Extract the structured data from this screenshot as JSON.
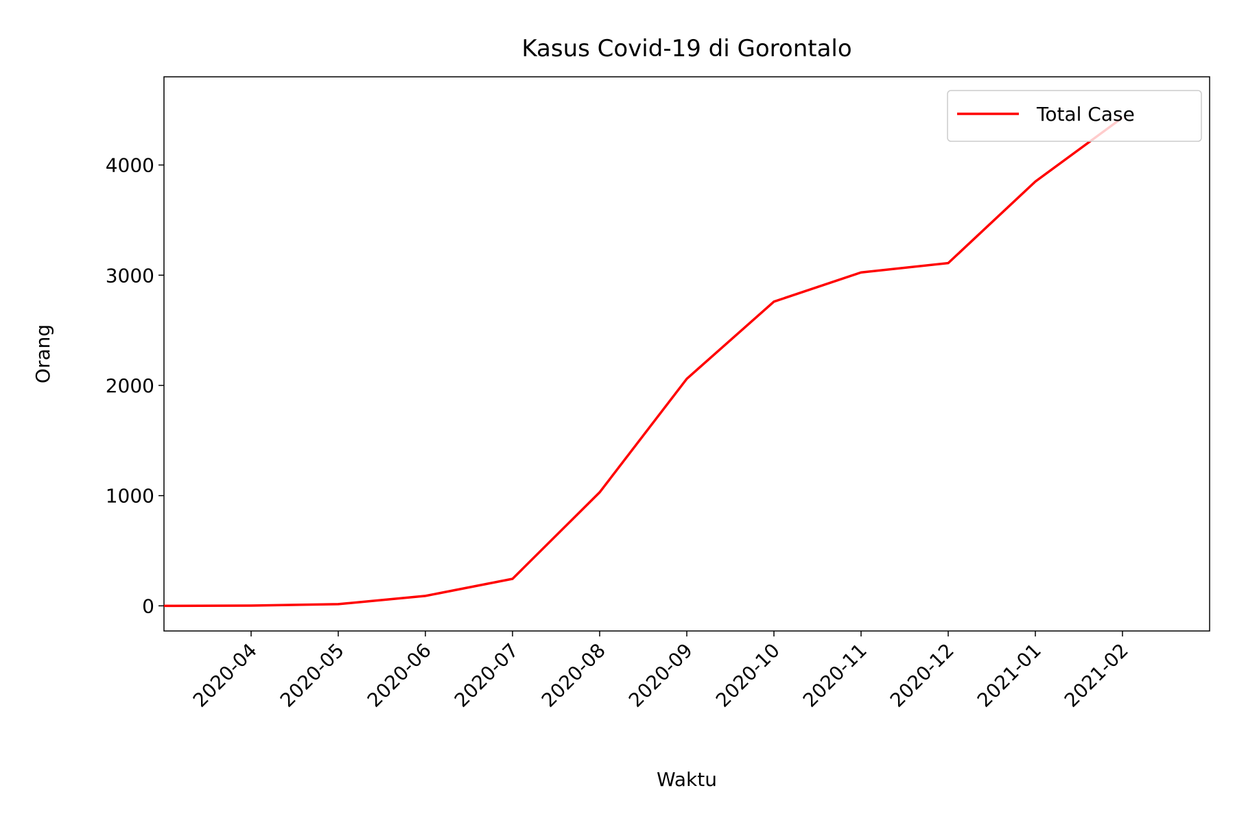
{
  "chart_data": {
    "type": "line",
    "title": "Kasus Covid-19 di Gorontalo",
    "x_label": "Waktu",
    "y_label": "Orang",
    "x": [
      "2020-03",
      "2020-04",
      "2020-05",
      "2020-06",
      "2020-07",
      "2020-08",
      "2020-09",
      "2020-10",
      "2020-11",
      "2020-12",
      "2021-01",
      "2021-02"
    ],
    "series": [
      {
        "name": "Total Case",
        "color": "#ff0000",
        "values": [
          0,
          2,
          15,
          90,
          245,
          1030,
          2060,
          2760,
          3025,
          3110,
          3850,
          4430
        ]
      }
    ],
    "xlim": [
      "2020-03",
      "2021-03"
    ],
    "xticks": [
      "2020-04",
      "2020-05",
      "2020-06",
      "2020-07",
      "2020-08",
      "2020-09",
      "2020-10",
      "2020-11",
      "2020-12",
      "2021-01",
      "2021-02"
    ],
    "ylim": [
      -228,
      4800
    ],
    "yticks": [
      0,
      1000,
      2000,
      3000,
      4000
    ],
    "grid": false,
    "legend": "upper right"
  }
}
